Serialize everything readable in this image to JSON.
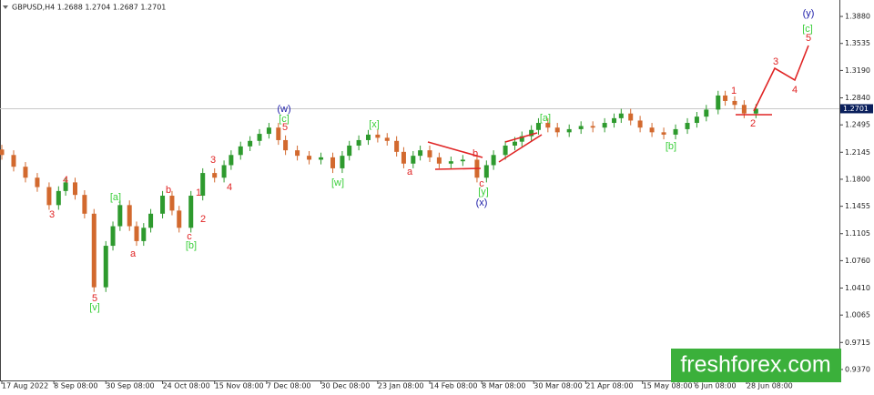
{
  "chart_data": {
    "type": "candlestick",
    "title": "GBPUSD,H4 1.2688 1.2704 1.2687 1.2701",
    "x": [
      0,
      5,
      10,
      15,
      20,
      24,
      27,
      31,
      35,
      39,
      44,
      47,
      50,
      54,
      57,
      60,
      63,
      68,
      72,
      75,
      80,
      85,
      90,
      94,
      97,
      101,
      105,
      109,
      113,
      117,
      120,
      125,
      130,
      135,
      140,
      144,
      147,
      151,
      155,
      159,
      163,
      167,
      170,
      174,
      177,
      181,
      185,
      190,
      195,
      201,
      205,
      208,
      213,
      217,
      220,
      224,
      227,
      231,
      235,
      240,
      245,
      250,
      255,
      259,
      262,
      266,
      270,
      275,
      280,
      285,
      290,
      294,
      298,
      303,
      306,
      310,
      314,
      319
    ],
    "open": [
      1.218,
      1.211,
      1.196,
      1.182,
      1.17,
      1.147,
      1.165,
      1.176,
      1.16,
      1.136,
      1.042,
      1.095,
      1.12,
      1.147,
      1.12,
      1.101,
      1.118,
      1.136,
      1.159,
      1.14,
      1.118,
      1.159,
      1.188,
      1.182,
      1.198,
      1.211,
      1.222,
      1.229,
      1.238,
      1.246,
      1.23,
      1.217,
      1.21,
      1.205,
      1.208,
      1.194,
      1.21,
      1.223,
      1.23,
      1.237,
      1.233,
      1.229,
      1.215,
      1.2,
      1.21,
      1.217,
      1.208,
      1.2,
      1.203,
      1.205,
      1.182,
      1.198,
      1.211,
      1.223,
      1.228,
      1.235,
      1.243,
      1.252,
      1.246,
      1.24,
      1.244,
      1.248,
      1.246,
      1.252,
      1.258,
      1.264,
      1.255,
      1.246,
      1.24,
      1.237,
      1.244,
      1.252,
      1.26,
      1.269,
      1.287,
      1.28,
      1.275,
      1.264
    ],
    "high": [
      1.224,
      1.217,
      1.202,
      1.188,
      1.176,
      1.171,
      1.182,
      1.182,
      1.166,
      1.142,
      1.101,
      1.126,
      1.153,
      1.153,
      1.126,
      1.124,
      1.142,
      1.165,
      1.165,
      1.146,
      1.165,
      1.194,
      1.194,
      1.204,
      1.217,
      1.228,
      1.235,
      1.244,
      1.252,
      1.252,
      1.236,
      1.223,
      1.216,
      1.214,
      1.214,
      1.216,
      1.229,
      1.236,
      1.243,
      1.243,
      1.239,
      1.235,
      1.221,
      1.216,
      1.223,
      1.223,
      1.214,
      1.209,
      1.211,
      1.211,
      1.204,
      1.217,
      1.229,
      1.234,
      1.241,
      1.249,
      1.258,
      1.258,
      1.252,
      1.25,
      1.254,
      1.254,
      1.258,
      1.264,
      1.27,
      1.27,
      1.261,
      1.252,
      1.246,
      1.25,
      1.258,
      1.266,
      1.275,
      1.293,
      1.293,
      1.286,
      1.281,
      1.276
    ],
    "low": [
      1.205,
      1.19,
      1.176,
      1.164,
      1.141,
      1.141,
      1.159,
      1.154,
      1.13,
      1.036,
      1.036,
      1.089,
      1.114,
      1.114,
      1.095,
      1.095,
      1.112,
      1.13,
      1.134,
      1.112,
      1.112,
      1.153,
      1.176,
      1.176,
      1.192,
      1.205,
      1.216,
      1.223,
      1.232,
      1.224,
      1.211,
      1.204,
      1.199,
      1.199,
      1.188,
      1.188,
      1.204,
      1.217,
      1.224,
      1.227,
      1.223,
      1.209,
      1.194,
      1.194,
      1.204,
      1.202,
      1.194,
      1.194,
      1.197,
      1.176,
      1.176,
      1.192,
      1.205,
      1.217,
      1.222,
      1.229,
      1.237,
      1.24,
      1.234,
      1.234,
      1.238,
      1.24,
      1.24,
      1.246,
      1.252,
      1.249,
      1.24,
      1.234,
      1.231,
      1.231,
      1.238,
      1.246,
      1.254,
      1.263,
      1.274,
      1.269,
      1.258,
      1.258
    ],
    "close": [
      1.211,
      1.196,
      1.182,
      1.17,
      1.147,
      1.165,
      1.176,
      1.16,
      1.136,
      1.042,
      1.095,
      1.12,
      1.147,
      1.12,
      1.101,
      1.118,
      1.136,
      1.159,
      1.14,
      1.118,
      1.159,
      1.188,
      1.182,
      1.198,
      1.211,
      1.222,
      1.229,
      1.238,
      1.246,
      1.23,
      1.217,
      1.21,
      1.205,
      1.208,
      1.194,
      1.21,
      1.223,
      1.23,
      1.237,
      1.233,
      1.229,
      1.215,
      1.2,
      1.21,
      1.217,
      1.208,
      1.2,
      1.203,
      1.205,
      1.182,
      1.198,
      1.211,
      1.223,
      1.228,
      1.235,
      1.243,
      1.252,
      1.246,
      1.24,
      1.244,
      1.248,
      1.246,
      1.252,
      1.258,
      1.264,
      1.255,
      1.246,
      1.24,
      1.237,
      1.244,
      1.252,
      1.26,
      1.269,
      1.287,
      1.28,
      1.275,
      1.264,
      1.27
    ],
    "up_color": "#2e9a2e",
    "down_color": "#d2692e",
    "xlim": [
      -0.77,
      354.3
    ],
    "xticks": [
      {
        "value": 0,
        "label": "17 Aug 2022"
      },
      {
        "value": 22,
        "label": "8 Sep 08:00"
      },
      {
        "value": 44,
        "label": "30 Sep 08:00"
      },
      {
        "value": 68,
        "label": "24 Oct 08:00"
      },
      {
        "value": 90,
        "label": "15 Nov 08:00"
      },
      {
        "value": 112,
        "label": "7 Dec 08:00"
      },
      {
        "value": 135,
        "label": "30 Dec 08:00"
      },
      {
        "value": 159,
        "label": "23 Jan 08:00"
      },
      {
        "value": 181,
        "label": "14 Feb 08:00"
      },
      {
        "value": 203,
        "label": "8 Mar 08:00"
      },
      {
        "value": 225,
        "label": "30 Mar 08:00"
      },
      {
        "value": 247,
        "label": "21 Apr 08:00"
      },
      {
        "value": 271,
        "label": "15 May 08:00"
      },
      {
        "value": 293,
        "label": "6 Jun 08:00"
      },
      {
        "value": 315,
        "label": "28 Jun 08:00"
      }
    ],
    "ylim": [
      0.923,
      1.409
    ],
    "yticks": [
      {
        "value": 1.388,
        "label": "1.3880"
      },
      1.3535,
      {
        "value": 1.319,
        "label": "1.3190"
      },
      {
        "value": 1.284,
        "label": "1.2840"
      },
      1.2495,
      1.2145,
      {
        "value": 1.18,
        "label": "1.1800"
      },
      1.1455,
      1.1105,
      {
        "value": 1.076,
        "label": "1.0760"
      },
      {
        "value": 1.041,
        "label": "1.0410"
      },
      1.0065,
      0.9715,
      {
        "value": 0.937,
        "label": "0.9370"
      }
    ],
    "current_price": 1.2701,
    "annotations": [
      {
        "text": "(y)",
        "color": "#1c1ca8"
      },
      {
        "text": "[c]",
        "color": "#3ccf3c"
      },
      {
        "text": "5",
        "color": "#e02424"
      },
      {
        "text": "3",
        "color": "#e02424"
      },
      {
        "text": "4",
        "color": "#e02424"
      },
      {
        "text": "1",
        "color": "#e02424"
      },
      {
        "text": "2",
        "color": "#e02424"
      },
      {
        "text": "(w)",
        "color": "#1c1ca8"
      },
      {
        "text": "[c]",
        "color": "#3ccf3c"
      },
      {
        "text": "5",
        "color": "#e02424"
      },
      {
        "text": "[x]",
        "color": "#3ccf3c"
      },
      {
        "text": "[w]",
        "color": "#3ccf3c"
      },
      {
        "text": "a",
        "color": "#e02424"
      },
      {
        "text": "b",
        "color": "#e02424"
      },
      {
        "text": "c",
        "color": "#e02424"
      },
      {
        "text": "[y]",
        "color": "#3ccf3c"
      },
      {
        "text": "(x)",
        "color": "#1c1ca8"
      },
      {
        "text": "[a]",
        "color": "#3ccf3c"
      },
      {
        "text": "[b]",
        "color": "#3ccf3c"
      },
      {
        "text": "3",
        "color": "#e02424"
      },
      {
        "text": "4",
        "color": "#e02424"
      },
      {
        "text": "5",
        "color": "#e02424"
      },
      {
        "text": "[v]",
        "color": "#3ccf3c"
      },
      {
        "text": "[a]",
        "color": "#3ccf3c"
      },
      {
        "text": "a",
        "color": "#e02424"
      },
      {
        "text": "b",
        "color": "#e02424"
      },
      {
        "text": "1",
        "color": "#e02424"
      },
      {
        "text": "2",
        "color": "#e02424"
      },
      {
        "text": "c",
        "color": "#e02424"
      },
      {
        "text": "[b]",
        "color": "#3ccf3c"
      },
      {
        "text": "3",
        "color": "#e02424"
      },
      {
        "text": "4",
        "color": "#e02424"
      }
    ],
    "watermark": "freshforex.com"
  }
}
